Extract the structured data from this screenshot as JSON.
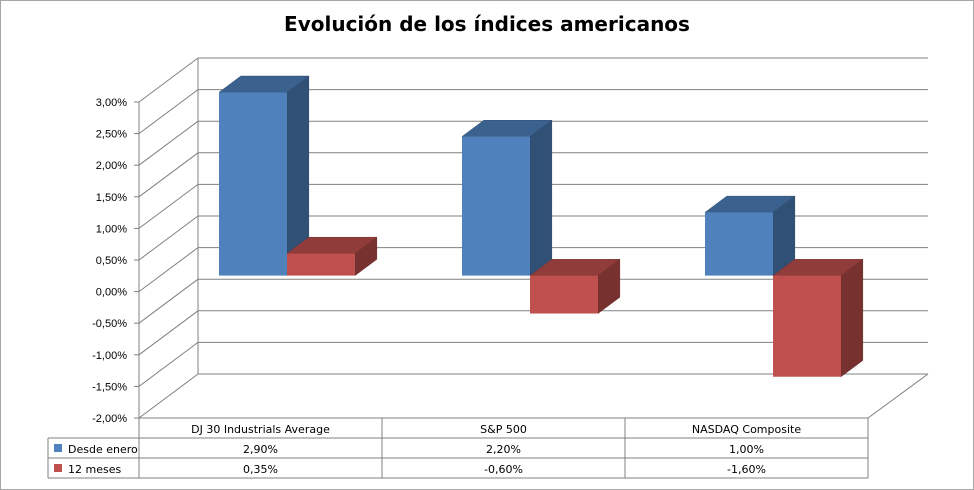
{
  "chart_data": {
    "type": "bar",
    "title": "Evolución de los índices americanos",
    "categories": [
      "DJ 30 Industrials Average",
      "S&P 500",
      "NASDAQ Composite"
    ],
    "series": [
      {
        "name": "Desde enero",
        "values": [
          2.9,
          2.2,
          1.0
        ],
        "labels": [
          "2,90%",
          "2,20%",
          "1,00%"
        ],
        "color": "#4f81bd"
      },
      {
        "name": "12 meses",
        "values": [
          0.35,
          -0.6,
          -1.6
        ],
        "labels": [
          "0,35%",
          "-0,60%",
          "-1,60%"
        ],
        "color": "#c0504d"
      }
    ],
    "ylim": [
      -2.0,
      3.0
    ],
    "yticks": [
      3.0,
      2.5,
      2.0,
      1.5,
      1.0,
      0.5,
      0.0,
      -0.5,
      -1.0,
      -1.5,
      -2.0
    ],
    "ytick_labels": [
      "3,00%",
      "2,50%",
      "2,00%",
      "1,50%",
      "1,00%",
      "0,50%",
      "0,00%",
      "-0,50%",
      "-1,00%",
      "-1,50%",
      "-2,00%"
    ],
    "grid": true,
    "legend": "data-table"
  }
}
